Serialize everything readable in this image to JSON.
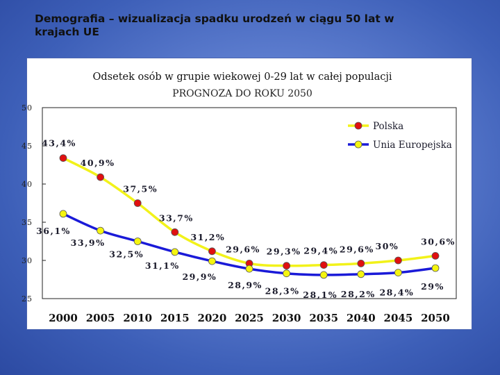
{
  "slide": {
    "title_line1": "Demografia – wizualizacja spadku urodzeń w ciągu 50 lat w",
    "title_line2": "krajach UE"
  },
  "chart_data": {
    "type": "line",
    "title": "Odsetek osób w grupie wiekowej 0-29 lat w całej populacji",
    "subtitle": "PROGNOZA DO ROKU 2050",
    "categories": [
      "2000",
      "2005",
      "2010",
      "2015",
      "2020",
      "2025",
      "2030",
      "2035",
      "2040",
      "2045",
      "2050"
    ],
    "ylim": [
      25,
      50
    ],
    "yticks": [
      "50",
      "45",
      "40",
      "35",
      "30",
      "25"
    ],
    "ytick_values": [
      50,
      45,
      40,
      35,
      30,
      25
    ],
    "legend_position": "top-right",
    "series": [
      {
        "name": "Polska",
        "line_color": "#f2f21a",
        "marker_color": "#e01010",
        "values": [
          43.4,
          40.9,
          37.5,
          33.7,
          31.2,
          29.6,
          29.3,
          29.4,
          29.6,
          30,
          30.6
        ],
        "labels": [
          "43,4%",
          "40,9%",
          "37,5%",
          "33,7%",
          "31,2%",
          "29,6%",
          "29,3%",
          "29,4%",
          "29,6%",
          "30%",
          "30,6%"
        ]
      },
      {
        "name": "Unia Europejska",
        "line_color": "#1a1ad8",
        "marker_color": "#f5f510",
        "values": [
          36.1,
          33.9,
          32.5,
          31.1,
          29.9,
          28.9,
          28.3,
          28.1,
          28.2,
          28.4,
          29
        ],
        "labels": [
          "36,1%",
          "33,9%",
          "32,5%",
          "31,1%",
          "29,9%",
          "28,9%",
          "28,3%",
          "28,1%",
          "28,2%",
          "28,4%",
          "29%"
        ]
      }
    ]
  }
}
